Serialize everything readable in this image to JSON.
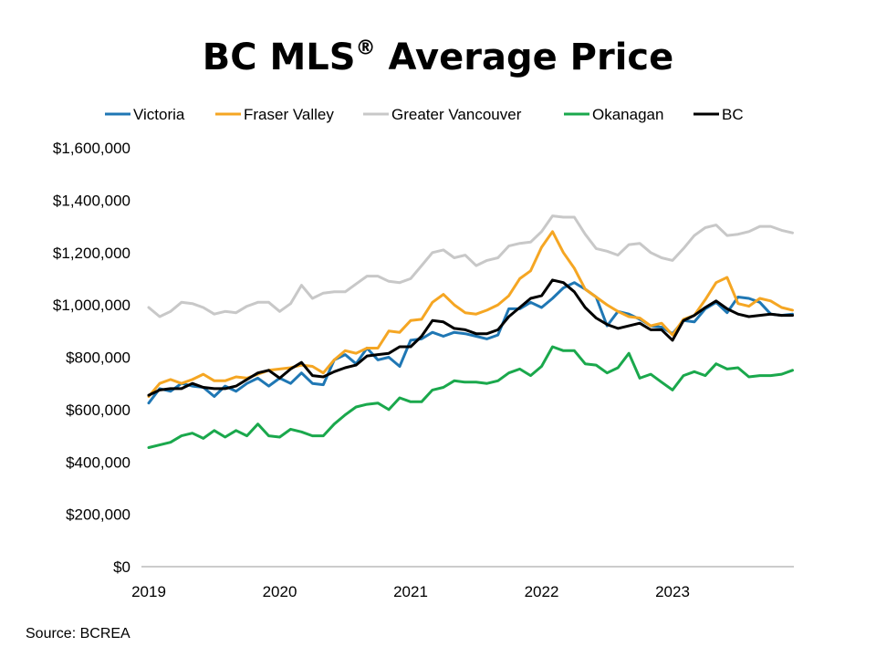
{
  "chart_data": {
    "type": "line",
    "title": "BC MLS",
    "title_mark": "®",
    "title_suffix": " Average Price",
    "source": "Source: BCREA",
    "ylim": [
      0,
      1600000
    ],
    "y_ticks": [
      0,
      200000,
      400000,
      600000,
      800000,
      1000000,
      1200000,
      1400000,
      1600000
    ],
    "y_tick_labels": [
      "$0",
      "$200,000",
      "$400,000",
      "$600,000",
      "$800,000",
      "$1,000,000",
      "$1,200,000",
      "$1,400,000",
      "$1,600,000"
    ],
    "x_ticks": [
      "2019-01",
      "2020-01",
      "2021-01",
      "2022-01",
      "2023-01"
    ],
    "x_tick_labels": [
      "2019",
      "2020",
      "2021",
      "2022",
      "2023"
    ],
    "x_start": "2019-01",
    "x_end": "2023-12",
    "grid": false,
    "legend_position": "top",
    "series": [
      {
        "name": "Victoria",
        "color": "#1f77b4",
        "values": [
          625000,
          680000,
          670000,
          700000,
          690000,
          685000,
          650000,
          690000,
          670000,
          700000,
          720000,
          690000,
          720000,
          700000,
          740000,
          700000,
          695000,
          790000,
          810000,
          775000,
          835000,
          790000,
          800000,
          765000,
          865000,
          870000,
          895000,
          880000,
          895000,
          890000,
          880000,
          870000,
          885000,
          985000,
          985000,
          1010000,
          990000,
          1025000,
          1065000,
          1085000,
          1060000,
          1030000,
          920000,
          975000,
          965000,
          945000,
          920000,
          915000,
          890000,
          940000,
          935000,
          985000,
          1010000,
          970000,
          1030000,
          1025000,
          1010000,
          965000,
          960000,
          965000
        ]
      },
      {
        "name": "Fraser Valley",
        "color": "#f5a623",
        "values": [
          650000,
          700000,
          715000,
          700000,
          715000,
          735000,
          710000,
          710000,
          725000,
          720000,
          735000,
          750000,
          755000,
          760000,
          770000,
          765000,
          740000,
          790000,
          825000,
          815000,
          835000,
          835000,
          900000,
          895000,
          940000,
          945000,
          1010000,
          1040000,
          1000000,
          970000,
          965000,
          980000,
          1000000,
          1035000,
          1100000,
          1130000,
          1220000,
          1280000,
          1200000,
          1140000,
          1060000,
          1030000,
          1000000,
          975000,
          955000,
          950000,
          920000,
          930000,
          885000,
          945000,
          960000,
          1020000,
          1085000,
          1105000,
          1005000,
          995000,
          1025000,
          1015000,
          990000,
          980000
        ]
      },
      {
        "name": "Greater Vancouver",
        "color": "#c8c8c8",
        "values": [
          990000,
          955000,
          975000,
          1010000,
          1005000,
          990000,
          965000,
          975000,
          970000,
          995000,
          1010000,
          1010000,
          975000,
          1005000,
          1075000,
          1025000,
          1045000,
          1050000,
          1050000,
          1080000,
          1110000,
          1110000,
          1090000,
          1085000,
          1100000,
          1150000,
          1200000,
          1210000,
          1180000,
          1190000,
          1150000,
          1170000,
          1180000,
          1225000,
          1235000,
          1240000,
          1280000,
          1340000,
          1335000,
          1335000,
          1270000,
          1215000,
          1205000,
          1190000,
          1230000,
          1235000,
          1200000,
          1180000,
          1170000,
          1215000,
          1265000,
          1295000,
          1305000,
          1265000,
          1270000,
          1280000,
          1300000,
          1300000,
          1285000,
          1275000
        ]
      },
      {
        "name": "Okanagan",
        "color": "#1aa84c",
        "values": [
          455000,
          465000,
          475000,
          500000,
          510000,
          490000,
          520000,
          495000,
          520000,
          500000,
          545000,
          500000,
          495000,
          525000,
          515000,
          500000,
          500000,
          545000,
          580000,
          610000,
          620000,
          625000,
          600000,
          645000,
          630000,
          630000,
          675000,
          685000,
          710000,
          705000,
          705000,
          700000,
          710000,
          740000,
          755000,
          730000,
          765000,
          840000,
          825000,
          825000,
          775000,
          770000,
          740000,
          760000,
          815000,
          720000,
          735000,
          705000,
          675000,
          730000,
          745000,
          730000,
          775000,
          755000,
          760000,
          725000,
          730000,
          730000,
          735000,
          750000
        ]
      },
      {
        "name": "BC",
        "color": "#000000",
        "values": [
          655000,
          675000,
          680000,
          680000,
          700000,
          685000,
          680000,
          680000,
          690000,
          715000,
          740000,
          750000,
          720000,
          755000,
          780000,
          730000,
          725000,
          745000,
          760000,
          770000,
          805000,
          810000,
          815000,
          840000,
          840000,
          880000,
          940000,
          935000,
          910000,
          905000,
          890000,
          890000,
          905000,
          955000,
          990000,
          1025000,
          1035000,
          1095000,
          1085000,
          1050000,
          990000,
          950000,
          925000,
          910000,
          920000,
          930000,
          905000,
          905000,
          865000,
          940000,
          960000,
          990000,
          1015000,
          985000,
          965000,
          955000,
          960000,
          965000,
          960000,
          960000
        ]
      }
    ]
  }
}
